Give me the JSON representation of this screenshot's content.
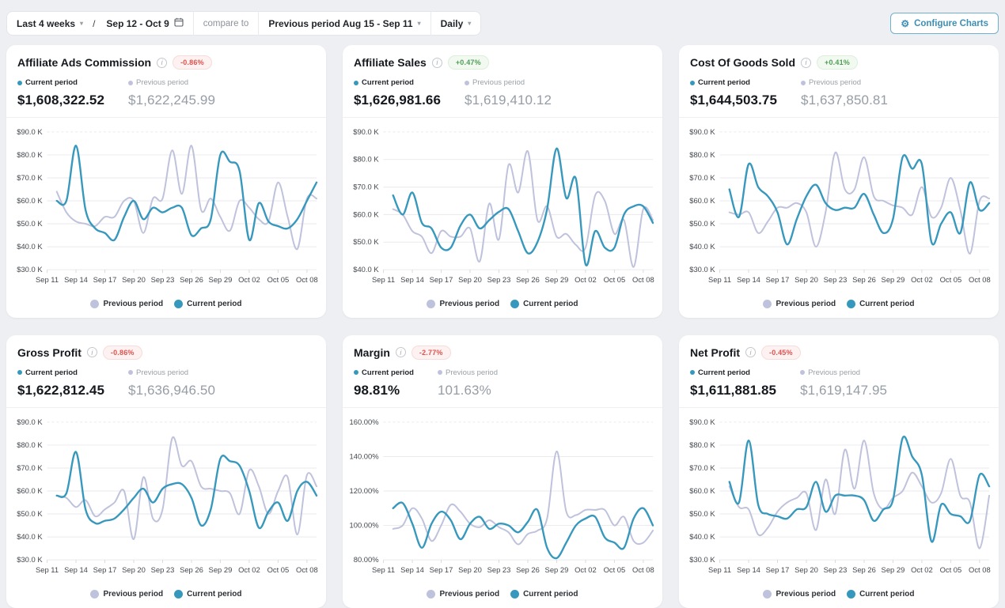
{
  "toolbar": {
    "range_label": "Last 4 weeks",
    "separator": "/",
    "date_range": "Sep 12 - Oct 9",
    "compare_label": "compare to",
    "compare_value": "Previous period Aug 15 - Sep 11",
    "granularity": "Daily",
    "configure_button": "Configure Charts"
  },
  "legend": {
    "current": "Current period",
    "previous": "Previous period"
  },
  "colors": {
    "page_bg": "#edeff2",
    "card_bg": "#ffffff",
    "current_line": "#3798bd",
    "previous_line": "#bfc2dc",
    "badge_negative_text": "#df514d",
    "badge_negative_bg": "#fdf2f1",
    "badge_positive_text": "#4f9d57",
    "badge_positive_bg": "#f2f9f1",
    "accent": "#3c8fb4",
    "grid_line": "#e9eaec"
  },
  "x_tick_labels": [
    "Sep 11",
    "Sep 14",
    "Sep 17",
    "Sep 20",
    "Sep 23",
    "Sep 26",
    "Sep 29",
    "Oct 02",
    "Oct 05",
    "Oct 08"
  ],
  "cards": [
    {
      "title": "Affiliate Ads Commission",
      "badge": "-0.86%",
      "badge_type": "negative",
      "current_value": "$1,608,322.52",
      "previous_value": "$1,622,245.99"
    },
    {
      "title": "Affiliate Sales",
      "badge": "+0.47%",
      "badge_type": "positive",
      "current_value": "$1,626,981.66",
      "previous_value": "$1,619,410.12"
    },
    {
      "title": "Cost Of Goods Sold",
      "badge": "+0.41%",
      "badge_type": "positive",
      "current_value": "$1,644,503.75",
      "previous_value": "$1,637,850.81"
    },
    {
      "title": "Gross Profit",
      "badge": "-0.86%",
      "badge_type": "negative",
      "current_value": "$1,622,812.45",
      "previous_value": "$1,636,946.50"
    },
    {
      "title": "Margin",
      "badge": "-2.77%",
      "badge_type": "negative",
      "current_value": "98.81%",
      "previous_value": "101.63%"
    },
    {
      "title": "Net Profit",
      "badge": "-0.45%",
      "badge_type": "negative",
      "current_value": "$1,611,881.85",
      "previous_value": "$1,619,147.95"
    }
  ],
  "chart_data": [
    {
      "type": "line",
      "title": "Affiliate Ads Commission",
      "ylim": [
        30,
        90
      ],
      "yticks": [
        {
          "v": 90,
          "label": "$90.0 K"
        },
        {
          "v": 80,
          "label": "$80.0 K"
        },
        {
          "v": 70,
          "label": "$70.0 K"
        },
        {
          "v": 60,
          "label": "$60.0 K"
        },
        {
          "v": 50,
          "label": "$50.0 K"
        },
        {
          "v": 40,
          "label": "$40.0 K"
        },
        {
          "v": 30,
          "label": "$30.0 K"
        }
      ],
      "series": [
        {
          "name": "Previous period",
          "values": [
            64,
            55,
            51,
            50,
            49,
            53,
            53,
            60,
            60,
            46,
            61,
            61,
            82,
            63,
            84,
            56,
            61,
            53,
            47,
            60,
            57,
            52,
            51,
            68,
            53,
            39,
            61,
            61
          ]
        },
        {
          "name": "Current period",
          "values": [
            60,
            60,
            84,
            56,
            48,
            46,
            43,
            53,
            60,
            52,
            57,
            55,
            57,
            57,
            45,
            48,
            52,
            80,
            77,
            73,
            43,
            59,
            51,
            49,
            48,
            52,
            60,
            68
          ]
        }
      ]
    },
    {
      "type": "line",
      "title": "Affiliate Sales",
      "ylim": [
        40,
        90
      ],
      "yticks": [
        {
          "v": 90,
          "label": "$90.0 K"
        },
        {
          "v": 80,
          "label": "$80.0 K"
        },
        {
          "v": 70,
          "label": "$70.0 K"
        },
        {
          "v": 60,
          "label": "$60.0 K"
        },
        {
          "v": 50,
          "label": "$50.0 K"
        },
        {
          "v": 40,
          "label": "$40.0 K"
        }
      ],
      "series": [
        {
          "name": "Previous period",
          "values": [
            62,
            60,
            54,
            52,
            46,
            54,
            52,
            52,
            55,
            43,
            64,
            51,
            78,
            68,
            83,
            58,
            63,
            52,
            53,
            49,
            48,
            67,
            65,
            53,
            58,
            41,
            62,
            58
          ]
        },
        {
          "name": "Current period",
          "values": [
            67,
            60,
            68,
            57,
            55,
            48,
            48,
            56,
            60,
            55,
            58,
            61,
            62,
            54,
            46,
            50,
            62,
            84,
            66,
            73,
            42,
            54,
            48,
            48,
            60,
            63,
            63,
            57
          ]
        }
      ]
    },
    {
      "type": "line",
      "title": "Cost Of Goods Sold",
      "ylim": [
        30,
        90
      ],
      "yticks": [
        {
          "v": 90,
          "label": "$90.0 K"
        },
        {
          "v": 80,
          "label": "$80.0 K"
        },
        {
          "v": 70,
          "label": "$70.0 K"
        },
        {
          "v": 60,
          "label": "$60.0 K"
        },
        {
          "v": 50,
          "label": "$50.0 K"
        },
        {
          "v": 40,
          "label": "$40.0 K"
        },
        {
          "v": 30,
          "label": "$30.0 K"
        }
      ],
      "series": [
        {
          "name": "Previous period",
          "values": [
            55,
            54,
            55,
            46,
            51,
            57,
            57,
            59,
            55,
            40,
            55,
            81,
            65,
            65,
            79,
            62,
            60,
            58,
            57,
            54,
            66,
            53,
            57,
            70,
            56,
            37,
            60,
            61
          ]
        },
        {
          "name": "Current period",
          "values": [
            65,
            53,
            76,
            66,
            62,
            55,
            41,
            52,
            62,
            67,
            59,
            56,
            57,
            57,
            63,
            54,
            46,
            52,
            79,
            74,
            76,
            42,
            50,
            55,
            46,
            68,
            56,
            59
          ]
        }
      ]
    },
    {
      "type": "line",
      "title": "Gross Profit",
      "ylim": [
        30,
        90
      ],
      "yticks": [
        {
          "v": 90,
          "label": "$90.0 K"
        },
        {
          "v": 80,
          "label": "$80.0 K"
        },
        {
          "v": 70,
          "label": "$70.0 K"
        },
        {
          "v": 60,
          "label": "$60.0 K"
        },
        {
          "v": 50,
          "label": "$50.0 K"
        },
        {
          "v": 40,
          "label": "$40.0 K"
        },
        {
          "v": 30,
          "label": "$30.0 K"
        }
      ],
      "series": [
        {
          "name": "Previous period",
          "values": [
            58,
            57,
            53,
            56,
            49,
            52,
            55,
            60,
            39,
            66,
            48,
            52,
            83,
            71,
            73,
            62,
            61,
            60,
            59,
            50,
            69,
            62,
            50,
            60,
            66,
            41,
            67,
            62
          ]
        },
        {
          "name": "Current period",
          "values": [
            58,
            59,
            77,
            52,
            46,
            47,
            48,
            52,
            57,
            61,
            55,
            61,
            63,
            63,
            57,
            45,
            52,
            74,
            73,
            71,
            60,
            44,
            51,
            55,
            47,
            60,
            64,
            58
          ]
        }
      ]
    },
    {
      "type": "line",
      "title": "Margin",
      "ylim": [
        80,
        160
      ],
      "yticks": [
        {
          "v": 160,
          "label": "160.00%"
        },
        {
          "v": 140,
          "label": "140.00%"
        },
        {
          "v": 120,
          "label": "120.00%"
        },
        {
          "v": 100,
          "label": "100.00%"
        },
        {
          "v": 80,
          "label": "80.00%"
        }
      ],
      "series": [
        {
          "name": "Previous period",
          "values": [
            98,
            100,
            110,
            104,
            91,
            100,
            112,
            108,
            101,
            99,
            103,
            99,
            96,
            89,
            95,
            97,
            104,
            143,
            108,
            106,
            109,
            109,
            109,
            100,
            105,
            91,
            90,
            97
          ]
        },
        {
          "name": "Current period",
          "values": [
            110,
            113,
            101,
            87,
            101,
            108,
            103,
            92,
            101,
            105,
            98,
            101,
            100,
            96,
            102,
            109,
            87,
            81,
            90,
            100,
            104,
            105,
            93,
            90,
            87,
            104,
            110,
            100
          ]
        }
      ]
    },
    {
      "type": "line",
      "title": "Net Profit",
      "ylim": [
        30,
        90
      ],
      "yticks": [
        {
          "v": 90,
          "label": "$90.0 K"
        },
        {
          "v": 80,
          "label": "$80.0 K"
        },
        {
          "v": 70,
          "label": "$70.0 K"
        },
        {
          "v": 60,
          "label": "$60.0 K"
        },
        {
          "v": 50,
          "label": "$50.0 K"
        },
        {
          "v": 40,
          "label": "$40.0 K"
        },
        {
          "v": 30,
          "label": "$30.0 K"
        }
      ],
      "series": [
        {
          "name": "Previous period",
          "values": [
            62,
            53,
            52,
            41,
            44,
            51,
            55,
            57,
            59,
            43,
            65,
            50,
            78,
            61,
            82,
            59,
            52,
            57,
            60,
            68,
            62,
            55,
            59,
            74,
            58,
            55,
            35,
            58
          ]
        },
        {
          "name": "Current period",
          "values": [
            64,
            55,
            82,
            54,
            50,
            49,
            48,
            52,
            53,
            64,
            51,
            58,
            58,
            58,
            56,
            47,
            52,
            56,
            83,
            75,
            67,
            38,
            54,
            50,
            49,
            47,
            67,
            62
          ]
        }
      ]
    }
  ]
}
